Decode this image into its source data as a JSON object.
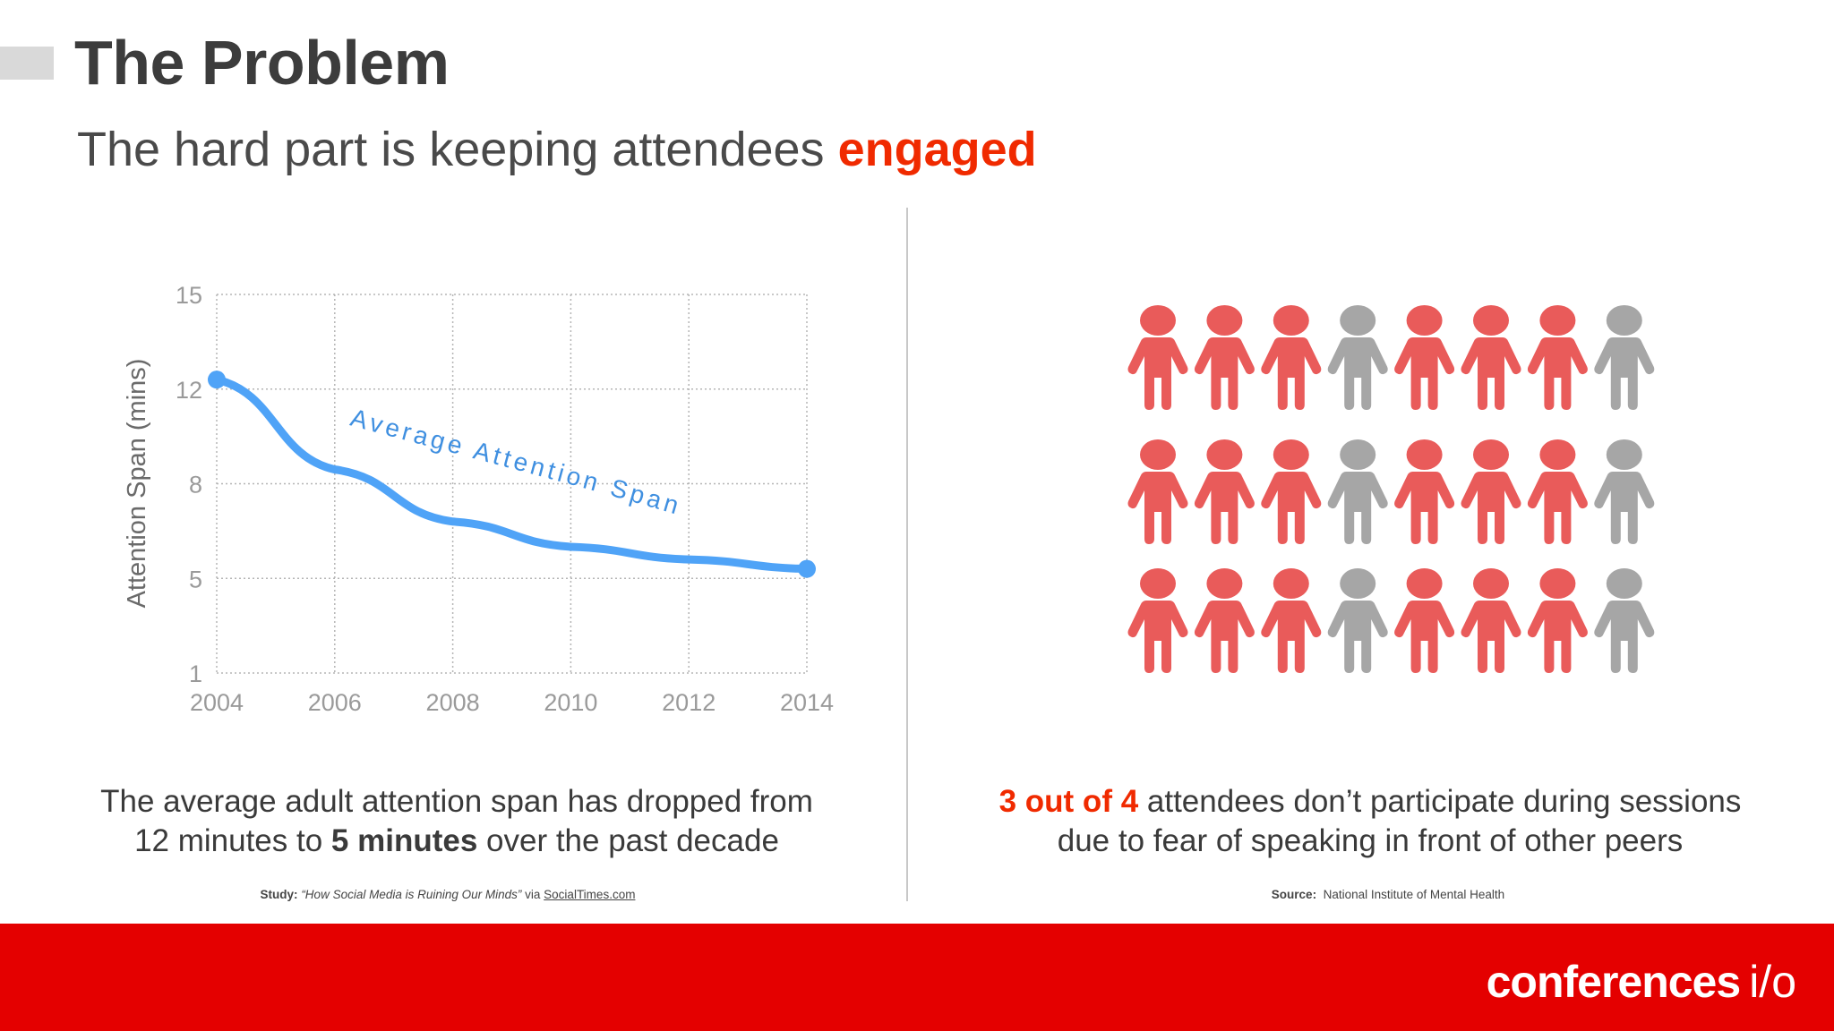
{
  "header": {
    "title": "The Problem",
    "subtitle_prefix": "The hard part is keeping attendees ",
    "subtitle_highlight": "engaged"
  },
  "left": {
    "caption_line1": "The average adult attention span has dropped from",
    "caption_line2_a": "12 minutes to ",
    "caption_line2_bold": "5 minutes",
    "caption_line2_b": " over the past decade",
    "source_label": "Study:",
    "source_title": "“How  Social Media is Ruining Our Minds”",
    "source_via": " via ",
    "source_link": "SocialTimes.com"
  },
  "right": {
    "caption_highlight": "3 out of 4",
    "caption_line1_rest": " attendees don’t participate during sessions",
    "caption_line2": "due to fear of speaking in front of other peers",
    "source_label": "Source:",
    "source_text": "National Institute of Mental Health",
    "people_rows": [
      [
        "red",
        "red",
        "red",
        "grey",
        "red",
        "red",
        "red",
        "grey"
      ],
      [
        "red",
        "red",
        "red",
        "grey",
        "red",
        "red",
        "red",
        "grey"
      ],
      [
        "red",
        "red",
        "red",
        "grey",
        "red",
        "red",
        "red",
        "grey"
      ]
    ],
    "colors": {
      "red": "#e95b5a",
      "grey": "#a6a6a6"
    }
  },
  "chart_data": {
    "type": "line",
    "ylabel": "Attention Span (mins)",
    "xlabel": "",
    "x_ticks": [
      "2004",
      "2006",
      "2008",
      "2010",
      "2012",
      "2014"
    ],
    "y_ticks": [
      "15",
      "12",
      "8",
      "5",
      "1"
    ],
    "series": [
      {
        "name": "Average Attention Span",
        "x": [
          2004,
          2006,
          2008,
          2010,
          2012,
          2014
        ],
        "y": [
          12.3,
          8.6,
          6.8,
          6.0,
          5.6,
          5.3
        ],
        "color": "#4fa3f7"
      }
    ],
    "grid": true,
    "ylim": [
      1,
      15
    ],
    "xlim": [
      2004,
      2014
    ]
  },
  "footer": {
    "logo_main": "conferences",
    "logo_suffix": "i/o",
    "color": "#e40000"
  }
}
